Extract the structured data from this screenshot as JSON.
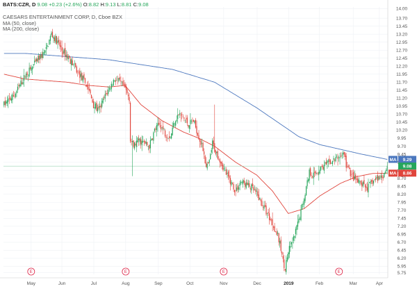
{
  "header": {
    "symbol": "BATS:CZR, D",
    "last": "9.08",
    "change": "+0.23 (+2.6%)",
    "ohlc": {
      "o": "8.82",
      "h": "9.13",
      "l": "8.81",
      "c": "9.08"
    },
    "labels": {
      "o": "O:",
      "h": "H:",
      "l": "L:",
      "c": "C:"
    },
    "title": "CAESARS ENTERTAINMENT CORP, D, Cboe BZX",
    "ma50": "MA (50, close)",
    "ma200": "MA (200, close)"
  },
  "chart_data": {
    "type": "candlestick",
    "title": "CAESARS ENTERTAINMENT CORP, D, Cboe BZX",
    "ylim": [
      5.7,
      14.05
    ],
    "y_ticks": [
      "5.75",
      "5.95",
      "6.20",
      "6.45",
      "6.70",
      "6.95",
      "7.20",
      "7.45",
      "7.70",
      "7.95",
      "8.20",
      "8.45",
      "8.70",
      "8.95",
      "9.20",
      "9.45",
      "9.70",
      "9.95",
      "10.20",
      "10.45",
      "10.70",
      "10.95",
      "11.20",
      "11.45",
      "11.70",
      "11.95",
      "12.20",
      "12.45",
      "12.70",
      "12.95",
      "13.20",
      "13.45",
      "13.70",
      "14.00"
    ],
    "x_ticks": [
      "May",
      "Jun",
      "Jul",
      "Aug",
      "Sep",
      "Oct",
      "Nov",
      "Dec",
      "2019",
      "Feb",
      "Mar",
      "Apr"
    ],
    "x_tick_bold": "2019",
    "price_path": [
      [
        0,
        11.0
      ],
      [
        10,
        11.3
      ],
      [
        20,
        11.9
      ],
      [
        30,
        12.3
      ],
      [
        40,
        12.7
      ],
      [
        45,
        13.2
      ],
      [
        50,
        13.0
      ],
      [
        55,
        12.7
      ],
      [
        60,
        12.5
      ],
      [
        65,
        12.3
      ],
      [
        70,
        12.0
      ],
      [
        75,
        11.8
      ],
      [
        80,
        11.5
      ],
      [
        85,
        11.0
      ],
      [
        90,
        10.8
      ],
      [
        95,
        11.2
      ],
      [
        100,
        11.5
      ],
      [
        105,
        11.8
      ],
      [
        110,
        11.7
      ],
      [
        115,
        11.5
      ],
      [
        119,
        11.2
      ],
      [
        120,
        9.9
      ],
      [
        123,
        9.7
      ],
      [
        128,
        9.9
      ],
      [
        133,
        9.8
      ],
      [
        138,
        9.7
      ],
      [
        143,
        10.2
      ],
      [
        148,
        10.4
      ],
      [
        153,
        10.1
      ],
      [
        158,
        10.0
      ],
      [
        162,
        10.5
      ],
      [
        166,
        10.7
      ],
      [
        170,
        10.6
      ],
      [
        175,
        10.4
      ],
      [
        180,
        10.5
      ],
      [
        185,
        10.0
      ],
      [
        190,
        9.5
      ],
      [
        192,
        9.0
      ],
      [
        195,
        9.2
      ],
      [
        198,
        9.8
      ],
      [
        200,
        9.6
      ],
      [
        205,
        9.3
      ],
      [
        210,
        8.9
      ],
      [
        215,
        8.6
      ],
      [
        220,
        8.3
      ],
      [
        225,
        8.6
      ],
      [
        230,
        8.5
      ],
      [
        235,
        8.4
      ],
      [
        240,
        8.2
      ],
      [
        245,
        7.9
      ],
      [
        250,
        7.6
      ],
      [
        255,
        7.3
      ],
      [
        260,
        6.9
      ],
      [
        263,
        6.5
      ],
      [
        265,
        6.1
      ],
      [
        267,
        5.9
      ],
      [
        270,
        6.4
      ],
      [
        275,
        6.8
      ],
      [
        280,
        7.4
      ],
      [
        285,
        8.1
      ],
      [
        290,
        8.9
      ],
      [
        295,
        8.8
      ],
      [
        300,
        9.0
      ],
      [
        305,
        9.1
      ],
      [
        310,
        9.2
      ],
      [
        315,
        9.3
      ],
      [
        320,
        9.4
      ],
      [
        323,
        9.5
      ],
      [
        325,
        9.1
      ],
      [
        330,
        8.8
      ],
      [
        335,
        8.6
      ],
      [
        340,
        8.5
      ],
      [
        345,
        8.4
      ],
      [
        350,
        8.6
      ],
      [
        355,
        8.7
      ],
      [
        360,
        8.8
      ],
      [
        364,
        9.08
      ]
    ],
    "series": [
      {
        "name": "MA (50, close)",
        "color": "#e0453c",
        "points": [
          [
            0,
            11.95
          ],
          [
            20,
            11.8
          ],
          [
            40,
            11.75
          ],
          [
            60,
            11.7
          ],
          [
            80,
            11.6
          ],
          [
            100,
            11.55
          ],
          [
            115,
            11.6
          ],
          [
            130,
            11.0
          ],
          [
            150,
            10.5
          ],
          [
            170,
            10.15
          ],
          [
            185,
            9.95
          ],
          [
            200,
            9.7
          ],
          [
            220,
            9.2
          ],
          [
            240,
            8.8
          ],
          [
            255,
            8.3
          ],
          [
            270,
            7.6
          ],
          [
            285,
            7.75
          ],
          [
            300,
            8.15
          ],
          [
            320,
            8.55
          ],
          [
            335,
            8.75
          ],
          [
            350,
            8.85
          ],
          [
            364,
            8.86
          ]
        ]
      },
      {
        "name": "MA (200, close)",
        "color": "#4b77be",
        "points": [
          [
            0,
            12.6
          ],
          [
            20,
            12.6
          ],
          [
            40,
            12.55
          ],
          [
            60,
            12.5
          ],
          [
            80,
            12.45
          ],
          [
            100,
            12.4
          ],
          [
            120,
            12.3
          ],
          [
            140,
            12.2
          ],
          [
            160,
            12.1
          ],
          [
            180,
            11.9
          ],
          [
            200,
            11.7
          ],
          [
            220,
            11.3
          ],
          [
            240,
            10.9
          ],
          [
            260,
            10.45
          ],
          [
            280,
            10.0
          ],
          [
            300,
            9.75
          ],
          [
            320,
            9.6
          ],
          [
            340,
            9.45
          ],
          [
            364,
            9.29
          ]
        ]
      }
    ],
    "last_price": 9.08,
    "price_tags": [
      {
        "label": "MA",
        "value": "9.29",
        "color": "#4b77be"
      },
      {
        "label": "",
        "value": "9.08",
        "color": "#26a65b"
      },
      {
        "label": "MA",
        "value": "8.86",
        "color": "#e0453c"
      }
    ],
    "earnings_markers": [
      "E",
      "E",
      "E",
      "E"
    ],
    "up_color": "#26a65b",
    "down_color": "#e0453c",
    "grid": true
  }
}
